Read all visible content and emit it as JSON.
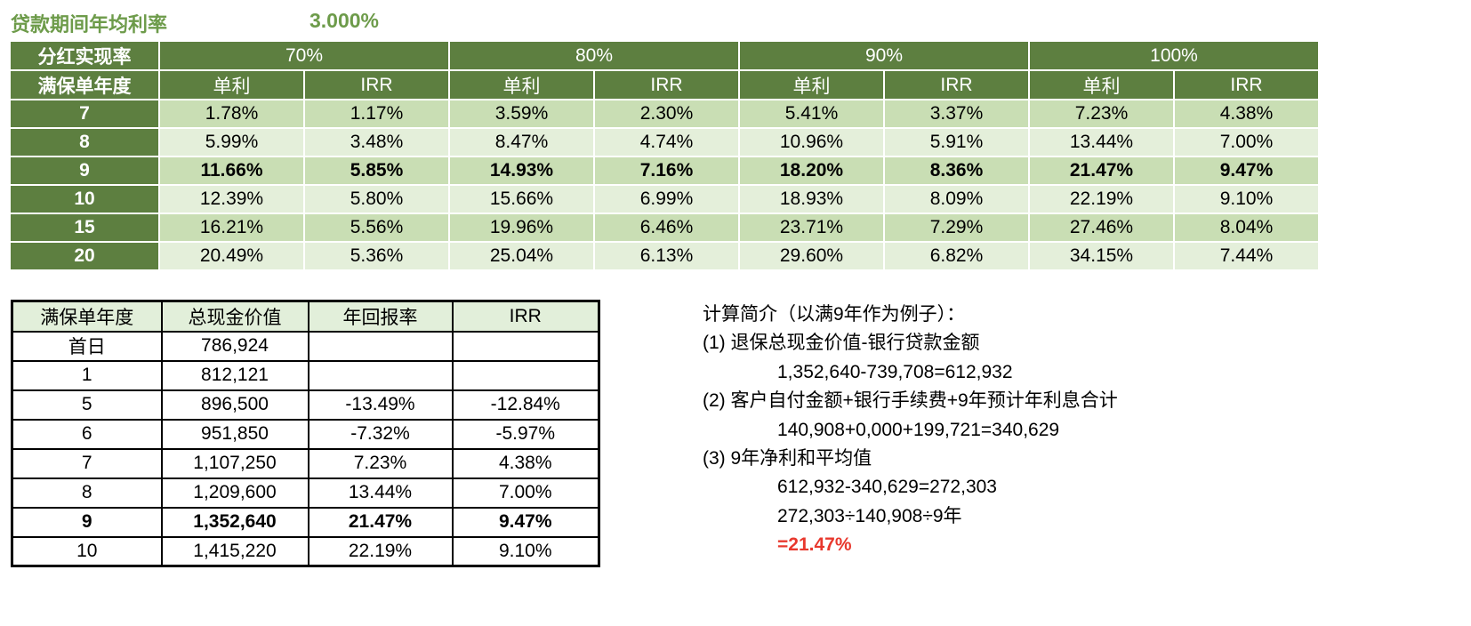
{
  "title": {
    "label": "贷款期间年均利率",
    "value": "3.000%"
  },
  "colors": {
    "header_green": "#5d7f40",
    "band_dark": "#c9deb4",
    "band_light": "#e4efda",
    "detail_header_bg": "#e2efda",
    "title_green": "#6d9b4a",
    "accent_red": "#e8382d",
    "ink": "#000000"
  },
  "main_table": {
    "corner_row1": "分红实现率",
    "corner_row2": "满保单年度",
    "groups": [
      "70%",
      "80%",
      "90%",
      "100%"
    ],
    "sub_headers": [
      "单利",
      "IRR",
      "单利",
      "IRR",
      "单利",
      "IRR",
      "单利",
      "IRR"
    ],
    "rows": [
      {
        "year": "7",
        "bold": false,
        "values": [
          "1.78%",
          "1.17%",
          "3.59%",
          "2.30%",
          "5.41%",
          "3.37%",
          "7.23%",
          "4.38%"
        ]
      },
      {
        "year": "8",
        "bold": false,
        "values": [
          "5.99%",
          "3.48%",
          "8.47%",
          "4.74%",
          "10.96%",
          "5.91%",
          "13.44%",
          "7.00%"
        ]
      },
      {
        "year": "9",
        "bold": true,
        "values": [
          "11.66%",
          "5.85%",
          "14.93%",
          "7.16%",
          "18.20%",
          "8.36%",
          "21.47%",
          "9.47%"
        ]
      },
      {
        "year": "10",
        "bold": false,
        "values": [
          "12.39%",
          "5.80%",
          "15.66%",
          "6.99%",
          "18.93%",
          "8.09%",
          "22.19%",
          "9.10%"
        ]
      },
      {
        "year": "15",
        "bold": false,
        "values": [
          "16.21%",
          "5.56%",
          "19.96%",
          "6.46%",
          "23.71%",
          "7.29%",
          "27.46%",
          "8.04%"
        ]
      },
      {
        "year": "20",
        "bold": false,
        "values": [
          "20.49%",
          "5.36%",
          "25.04%",
          "6.13%",
          "29.60%",
          "6.82%",
          "34.15%",
          "7.44%"
        ]
      }
    ]
  },
  "detail_table": {
    "headers": [
      "满保单年度",
      "总现金价值",
      "年回报率",
      "IRR"
    ],
    "rows": [
      {
        "year": "首日",
        "cash": "786,924",
        "annual": "",
        "irr": "",
        "bold": false
      },
      {
        "year": "1",
        "cash": "812,121",
        "annual": "",
        "irr": "",
        "bold": false
      },
      {
        "year": "5",
        "cash": "896,500",
        "annual": "-13.49%",
        "irr": "-12.84%",
        "bold": false
      },
      {
        "year": "6",
        "cash": "951,850",
        "annual": "-7.32%",
        "irr": "-5.97%",
        "bold": false
      },
      {
        "year": "7",
        "cash": "1,107,250",
        "annual": "7.23%",
        "irr": "4.38%",
        "bold": false
      },
      {
        "year": "8",
        "cash": "1,209,600",
        "annual": "13.44%",
        "irr": "7.00%",
        "bold": false
      },
      {
        "year": "9",
        "cash": "1,352,640",
        "annual": "21.47%",
        "irr": "9.47%",
        "bold": true
      },
      {
        "year": "10",
        "cash": "1,415,220",
        "annual": "22.19%",
        "irr": "9.10%",
        "bold": false
      }
    ]
  },
  "notes": {
    "lines": [
      {
        "text": "计算简介（以满9年作为例子）："
      },
      {
        "text": "(1) 退保总现金价值-银行贷款金额"
      },
      {
        "text": "1,352,640-739,708=612,932",
        "indent": true
      },
      {
        "text": "(2) 客户自付金额+银行手续费+9年预计年利息合计"
      },
      {
        "text": "140,908+0,000+199,721=340,629",
        "indent": true
      },
      {
        "text": "(3) 9年净利和平均值"
      },
      {
        "text": "612,932-340,629=272,303",
        "indent": true
      },
      {
        "text": "272,303÷140,908÷9年",
        "indent": true
      },
      {
        "text": "=21.47%",
        "indent": true,
        "red": true
      }
    ]
  }
}
